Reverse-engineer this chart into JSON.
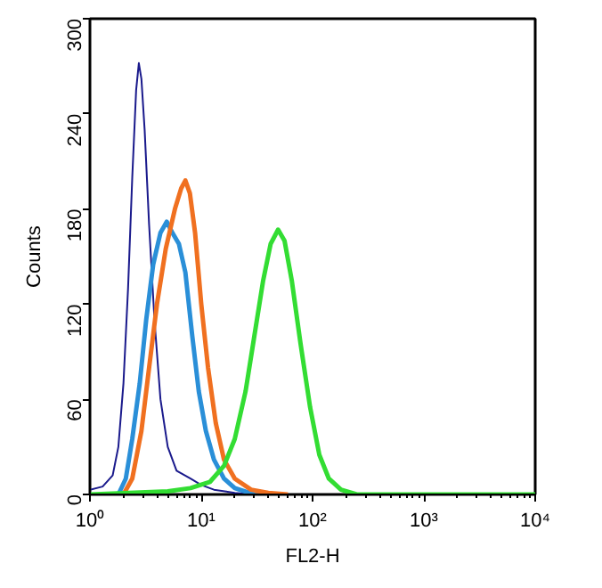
{
  "chart_data": {
    "type": "line",
    "xlabel": "FL2-H",
    "ylabel": "Counts",
    "log": "x",
    "xlim": [
      1,
      10000
    ],
    "ylim": [
      0,
      300
    ],
    "xticks": [
      {
        "value": 1,
        "label": "10⁰"
      },
      {
        "value": 10,
        "label": "10¹"
      },
      {
        "value": 100,
        "label": "10²"
      },
      {
        "value": 1000,
        "label": "10³"
      },
      {
        "value": 10000,
        "label": "10⁴"
      }
    ],
    "yticks": [
      0,
      60,
      120,
      180,
      240,
      300
    ],
    "grid": false,
    "line_style": "solid",
    "series": [
      {
        "color": "#1a1a8c",
        "x": [
          1.0,
          1.3,
          1.6,
          1.8,
          2.0,
          2.2,
          2.4,
          2.6,
          2.75,
          2.9,
          3.1,
          3.4,
          3.8,
          4.3,
          5.0,
          6.0,
          8,
          10,
          13,
          20,
          30
        ],
        "values": [
          3,
          5,
          12,
          30,
          70,
          130,
          200,
          255,
          272,
          262,
          230,
          170,
          110,
          60,
          30,
          15,
          10,
          6,
          3,
          1,
          0
        ]
      },
      {
        "color": "#2a8fd8",
        "x": [
          1.8,
          2.1,
          2.4,
          2.8,
          3.2,
          3.7,
          4.3,
          4.9,
          5.5,
          6.3,
          7.2,
          8.3,
          9.5,
          11,
          13,
          16,
          20,
          30
        ],
        "values": [
          0,
          10,
          35,
          70,
          110,
          145,
          165,
          172,
          165,
          158,
          140,
          100,
          65,
          40,
          22,
          10,
          4,
          0
        ]
      },
      {
        "color": "#f07020",
        "x": [
          2.0,
          2.4,
          2.9,
          3.4,
          4.0,
          4.8,
          5.8,
          6.6,
          7.2,
          7.9,
          8.8,
          10,
          11.5,
          13.5,
          16,
          20,
          28,
          40,
          60
        ],
        "values": [
          0,
          10,
          40,
          80,
          120,
          155,
          180,
          193,
          198,
          190,
          165,
          120,
          80,
          45,
          22,
          10,
          3,
          1,
          0
        ]
      },
      {
        "color": "#33dd33",
        "x": [
          1,
          5,
          8,
          12,
          16,
          20,
          25,
          30,
          36,
          42,
          49,
          56,
          65,
          78,
          95,
          115,
          140,
          180,
          250,
          10000
        ],
        "values": [
          0,
          2,
          4,
          8,
          18,
          35,
          65,
          100,
          135,
          158,
          167,
          160,
          135,
          95,
          55,
          25,
          10,
          3,
          0,
          0
        ]
      }
    ]
  }
}
